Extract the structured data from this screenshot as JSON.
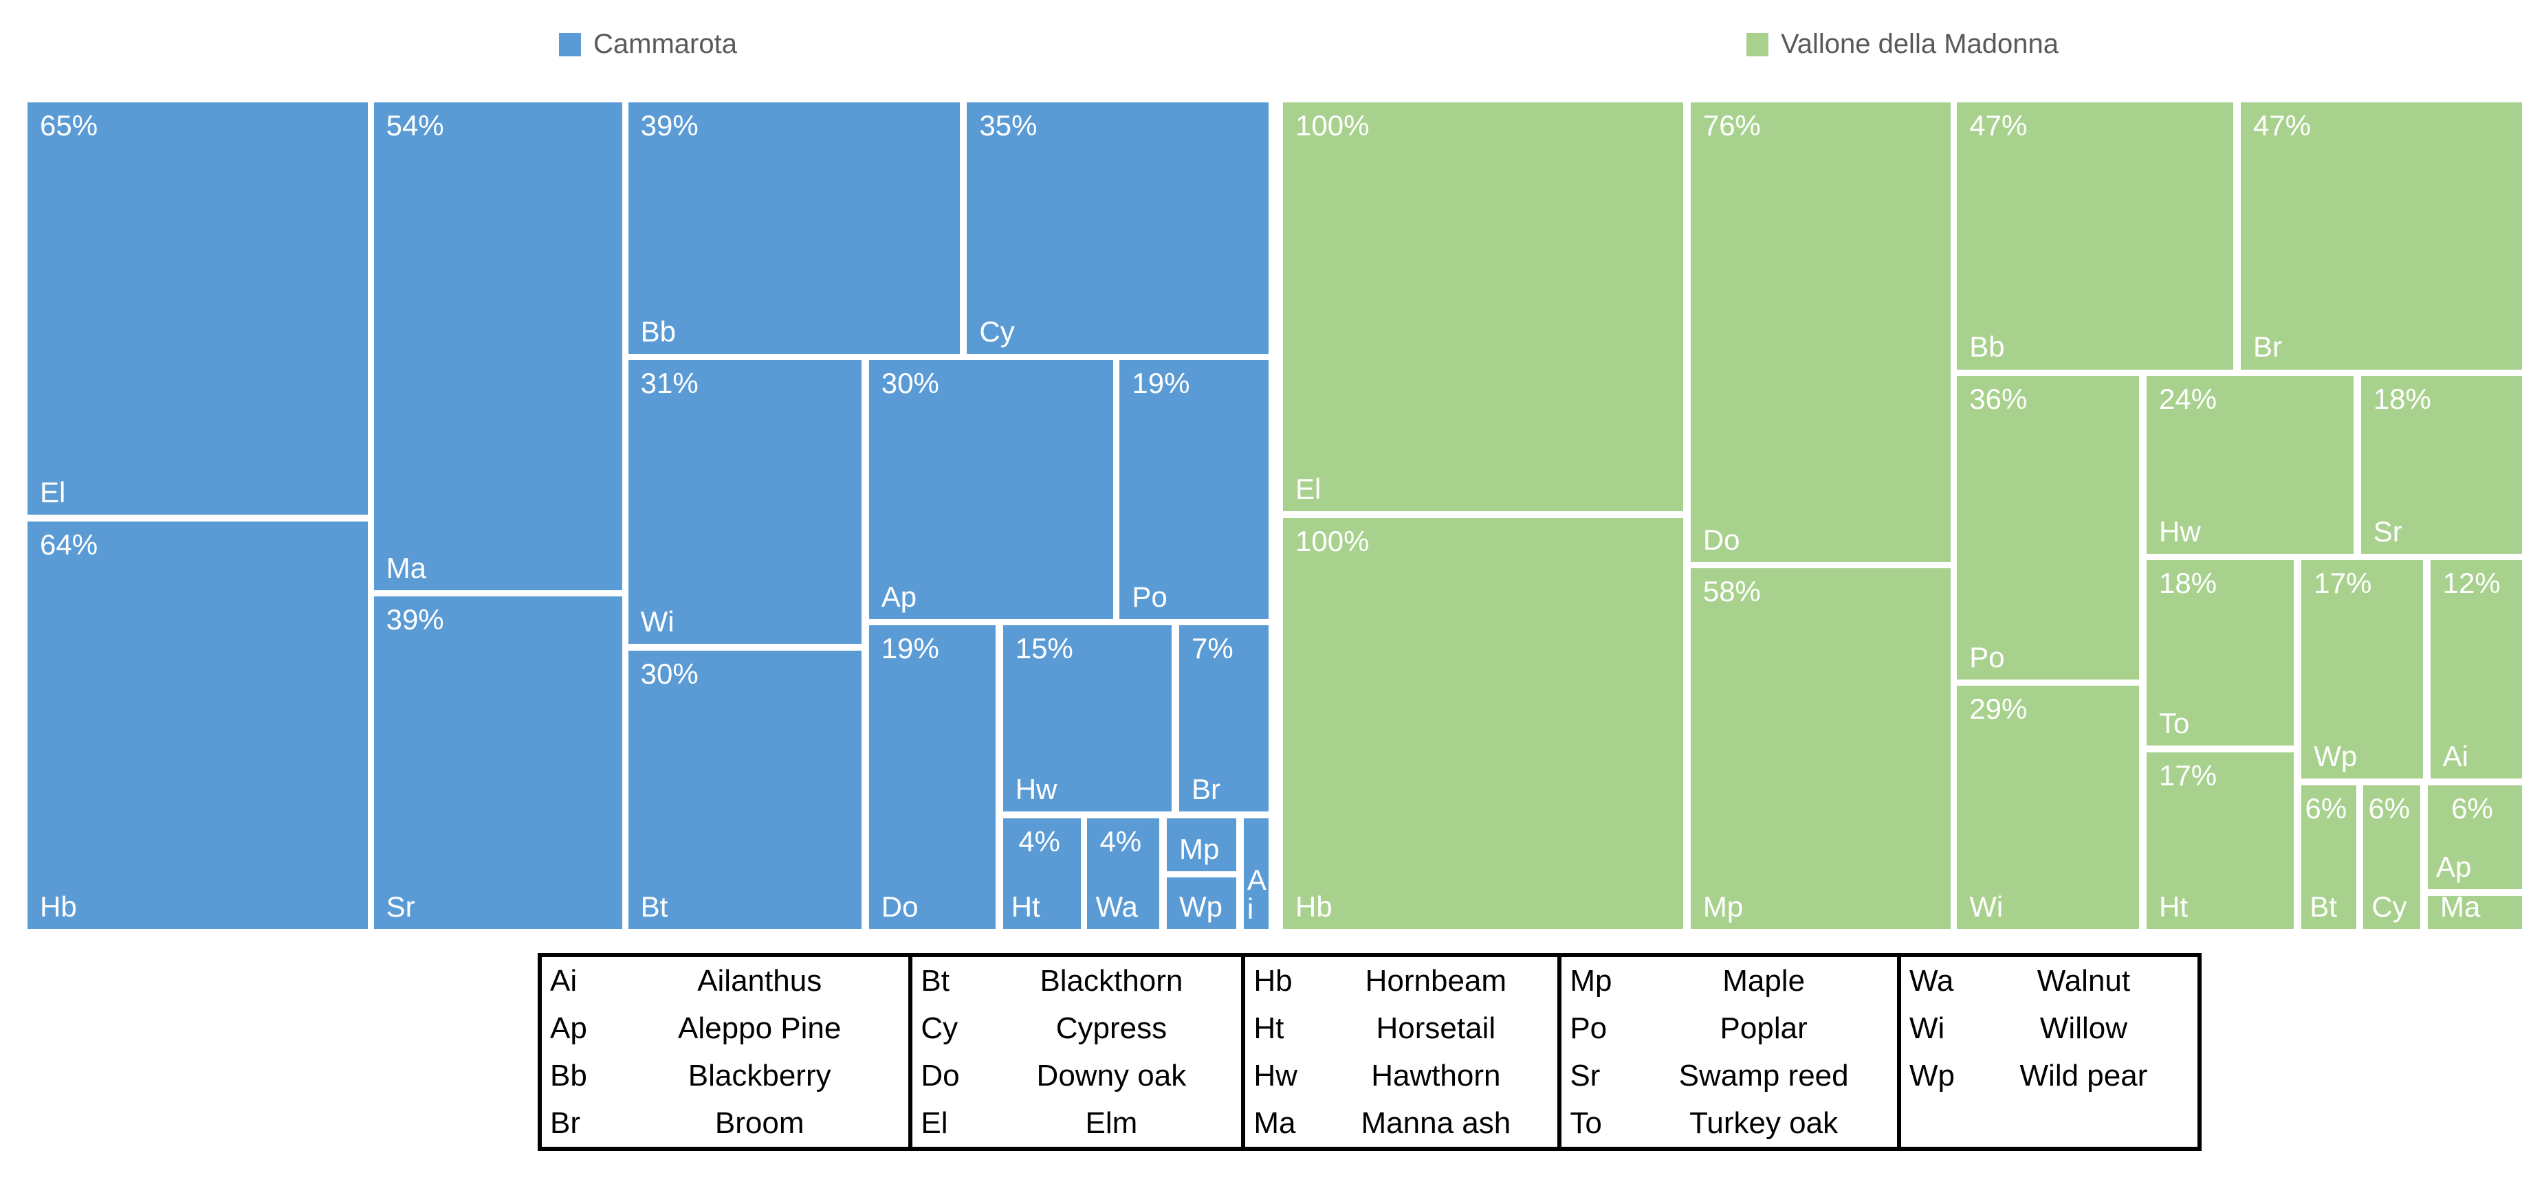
{
  "legend": {
    "items": [
      {
        "label": "Cammarota",
        "color": "#5B9BD5"
      },
      {
        "label": "Vallone della Madonna",
        "color": "#A9D18E"
      }
    ]
  },
  "chart_data": [
    {
      "type": "treemap",
      "name": "Cammarota",
      "color": "#5B9BD5",
      "value_unit": "percent",
      "tiles": [
        {
          "code": "El",
          "value": 65,
          "label": "65%",
          "x": 0,
          "y": 0,
          "w": 27.4,
          "h": 49.9
        },
        {
          "code": "Hb",
          "value": 64,
          "label": "64%",
          "x": 0,
          "y": 50.7,
          "w": 27.4,
          "h": 49.3
        },
        {
          "code": "Ma",
          "value": 54,
          "label": "54%",
          "x": 27.9,
          "y": 0,
          "w": 20.0,
          "h": 59.0
        },
        {
          "code": "Sr",
          "value": 39,
          "label": "39%",
          "x": 27.9,
          "y": 59.8,
          "w": 20.0,
          "h": 40.2
        },
        {
          "code": "Bb",
          "value": 39,
          "label": "39%",
          "x": 48.4,
          "y": 0,
          "w": 26.7,
          "h": 30.4
        },
        {
          "code": "Cy",
          "value": 35,
          "label": "35%",
          "x": 75.7,
          "y": 0,
          "w": 24.3,
          "h": 30.4
        },
        {
          "code": "Wi",
          "value": 31,
          "label": "31%",
          "x": 48.4,
          "y": 31.2,
          "w": 18.8,
          "h": 34.3
        },
        {
          "code": "Ap",
          "value": 30,
          "label": "30%",
          "x": 67.8,
          "y": 31.2,
          "w": 19.7,
          "h": 31.3
        },
        {
          "code": "Po",
          "value": 19,
          "label": "19%",
          "x": 88.0,
          "y": 31.2,
          "w": 12.0,
          "h": 31.3
        },
        {
          "code": "Bt",
          "value": 30,
          "label": "30%",
          "x": 48.4,
          "y": 66.3,
          "w": 18.8,
          "h": 33.7
        },
        {
          "code": "Do",
          "value": 19,
          "label": "19%",
          "x": 67.8,
          "y": 63.3,
          "w": 10.2,
          "h": 36.7
        },
        {
          "code": "Hw",
          "value": 15,
          "label": "15%",
          "x": 78.6,
          "y": 63.3,
          "w": 13.6,
          "h": 22.5
        },
        {
          "code": "Br",
          "value": 7,
          "label": "7%",
          "x": 92.8,
          "y": 63.3,
          "w": 7.2,
          "h": 22.5
        },
        {
          "code": "Ht",
          "value": 4,
          "label": "4%",
          "x": 78.6,
          "y": 86.6,
          "w": 6.3,
          "h": 13.4,
          "small": true
        },
        {
          "code": "Wa",
          "value": 4,
          "label": "4%",
          "x": 85.4,
          "y": 86.6,
          "w": 5.8,
          "h": 13.4,
          "small": true
        },
        {
          "code": "Mp",
          "label": "",
          "x": 91.8,
          "y": 86.6,
          "w": 5.6,
          "h": 6.4
        },
        {
          "code": "Wp",
          "label": "",
          "x": 91.8,
          "y": 93.8,
          "w": 5.6,
          "h": 6.2
        },
        {
          "code": "Ai",
          "label": "",
          "x": 98.0,
          "y": 86.6,
          "w": 2.0,
          "h": 13.4,
          "stack": true
        }
      ]
    },
    {
      "type": "treemap",
      "name": "Vallone della Madonna",
      "color": "#A9D18E",
      "value_unit": "percent",
      "tiles": [
        {
          "code": "El",
          "value": 100,
          "label": "100%",
          "x": 0,
          "y": 0,
          "w": 32.3,
          "h": 49.5
        },
        {
          "code": "Hb",
          "value": 100,
          "label": "100%",
          "x": 0,
          "y": 50.3,
          "w": 32.3,
          "h": 49.7
        },
        {
          "code": "Do",
          "value": 76,
          "label": "76%",
          "x": 32.9,
          "y": 0,
          "w": 21.0,
          "h": 55.6
        },
        {
          "code": "Mp",
          "value": 58,
          "label": "58%",
          "x": 32.9,
          "y": 56.4,
          "w": 21.0,
          "h": 43.6
        },
        {
          "code": "Bb",
          "value": 47,
          "label": "47%",
          "x": 54.4,
          "y": 0,
          "w": 22.3,
          "h": 32.3
        },
        {
          "code": "Br",
          "value": 47,
          "label": "47%",
          "x": 77.3,
          "y": 0,
          "w": 22.7,
          "h": 32.3
        },
        {
          "code": "Po",
          "value": 36,
          "label": "36%",
          "x": 54.4,
          "y": 33.1,
          "w": 14.7,
          "h": 36.7
        },
        {
          "code": "Wi",
          "value": 29,
          "label": "29%",
          "x": 54.4,
          "y": 70.6,
          "w": 14.7,
          "h": 29.4
        },
        {
          "code": "Hw",
          "value": 24,
          "label": "24%",
          "x": 69.7,
          "y": 33.1,
          "w": 16.7,
          "h": 21.5
        },
        {
          "code": "Sr",
          "value": 18,
          "label": "18%",
          "x": 87.0,
          "y": 33.1,
          "w": 13.0,
          "h": 21.5
        },
        {
          "code": "To",
          "value": 18,
          "label": "18%",
          "x": 69.7,
          "y": 55.4,
          "w": 11.9,
          "h": 22.4
        },
        {
          "code": "Ht",
          "value": 17,
          "label": "17%",
          "x": 69.7,
          "y": 78.6,
          "w": 11.9,
          "h": 21.4
        },
        {
          "code": "Wp",
          "value": 17,
          "label": "17%",
          "x": 82.2,
          "y": 55.4,
          "w": 9.8,
          "h": 26.4
        },
        {
          "code": "Ai",
          "value": 12,
          "label": "12%",
          "x": 92.6,
          "y": 55.4,
          "w": 7.4,
          "h": 26.4
        },
        {
          "code": "Bt",
          "value": 6,
          "label": "6%",
          "x": 82.2,
          "y": 82.6,
          "w": 4.4,
          "h": 17.4,
          "small": true
        },
        {
          "code": "Cy",
          "value": 6,
          "label": "6%",
          "x": 87.2,
          "y": 82.6,
          "w": 4.6,
          "h": 17.4,
          "small": true
        },
        {
          "code": "Ap",
          "value": 6,
          "label": "6%",
          "x": 92.4,
          "y": 82.6,
          "w": 7.6,
          "h": 12.6,
          "small": true
        },
        {
          "code": "Ma",
          "label": "",
          "x": 92.4,
          "y": 96.0,
          "w": 7.6,
          "h": 4.0
        }
      ]
    }
  ],
  "legend_table": {
    "groups": [
      {
        "rows": [
          {
            "abbr": "Ai",
            "name": "Ailanthus"
          },
          {
            "abbr": "Ap",
            "name": "Aleppo Pine"
          },
          {
            "abbr": "Bb",
            "name": "Blackberry"
          },
          {
            "abbr": "Br",
            "name": "Broom"
          }
        ]
      },
      {
        "rows": [
          {
            "abbr": "Bt",
            "name": "Blackthorn"
          },
          {
            "abbr": "Cy",
            "name": "Cypress"
          },
          {
            "abbr": "Do",
            "name": "Downy oak"
          },
          {
            "abbr": "El",
            "name": "Elm"
          }
        ]
      },
      {
        "rows": [
          {
            "abbr": "Hb",
            "name": "Hornbeam"
          },
          {
            "abbr": "Ht",
            "name": "Horsetail"
          },
          {
            "abbr": "Hw",
            "name": "Hawthorn"
          },
          {
            "abbr": "Ma",
            "name": "Manna ash"
          }
        ]
      },
      {
        "rows": [
          {
            "abbr": "Mp",
            "name": "Maple"
          },
          {
            "abbr": "Po",
            "name": "Poplar"
          },
          {
            "abbr": "Sr",
            "name": "Swamp reed"
          },
          {
            "abbr": "To",
            "name": "Turkey oak"
          }
        ]
      },
      {
        "rows": [
          {
            "abbr": "Wa",
            "name": "Walnut"
          },
          {
            "abbr": "Wi",
            "name": "Willow"
          },
          {
            "abbr": "Wp",
            "name": "Wild pear"
          }
        ]
      }
    ],
    "group_widths_pct": [
      22.4,
      20.1,
      19.1,
      20.5,
      17.9
    ]
  }
}
